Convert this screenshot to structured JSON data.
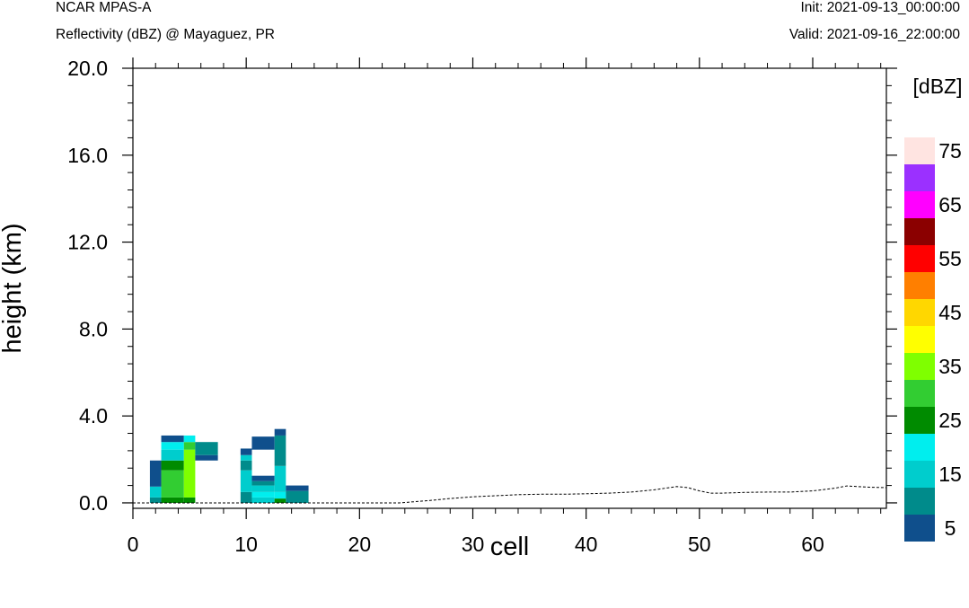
{
  "header": {
    "model": "NCAR MPAS-A",
    "field": "Reflectivity (dBZ) @ Mayaguez, PR",
    "init": "Init: 2021-09-13_00:00:00",
    "valid": "Valid: 2021-09-16_22:00:00"
  },
  "chart_data": {
    "type": "heatmap",
    "xlabel": "cell",
    "ylabel": "height (km)",
    "xlim": [
      0,
      66.5
    ],
    "ylim": [
      -0.25,
      20.0
    ],
    "xticks": [
      0,
      10,
      20,
      30,
      40,
      50,
      60
    ],
    "xtick_labels": [
      "0",
      "10",
      "20",
      "30",
      "40",
      "50",
      "60"
    ],
    "yticks": [
      0.0,
      4.0,
      8.0,
      12.0,
      16.0,
      20.0
    ],
    "ytick_labels": [
      "0.0",
      "4.0",
      "8.0",
      "12.0",
      "16.0",
      "20.0"
    ],
    "colorbar": {
      "unit_label": "[dBZ]",
      "tick_labels": [
        "5",
        "15",
        "25",
        "35",
        "45",
        "55",
        "65",
        "75"
      ],
      "levels": [
        5,
        10,
        15,
        20,
        25,
        30,
        35,
        40,
        45,
        50,
        55,
        60,
        65,
        70,
        75
      ],
      "colors": [
        "#0f4f8c",
        "#008b8b",
        "#00cdcd",
        "#00eeee",
        "#008b00",
        "#32cd32",
        "#7fff00",
        "#ffff00",
        "#ffd700",
        "#ff7f00",
        "#ff0000",
        "#8b0000",
        "#ff00ff",
        "#9b30ff",
        "#ffe4e1"
      ]
    },
    "cells": [
      {
        "x0": 1.5,
        "x1": 2.5,
        "y0": 0.0,
        "y1": 0.25,
        "dbz": 10
      },
      {
        "x0": 1.5,
        "x1": 2.5,
        "y0": 0.25,
        "y1": 0.75,
        "dbz": 15
      },
      {
        "x0": 1.5,
        "x1": 2.5,
        "y0": 0.75,
        "y1": 1.95,
        "dbz": 5
      },
      {
        "x0": 2.5,
        "x1": 4.5,
        "y0": 0.0,
        "y1": 0.25,
        "dbz": 25
      },
      {
        "x0": 2.5,
        "x1": 4.5,
        "y0": 0.25,
        "y1": 1.5,
        "dbz": 30
      },
      {
        "x0": 2.5,
        "x1": 4.5,
        "y0": 1.5,
        "y1": 1.95,
        "dbz": 25
      },
      {
        "x0": 2.5,
        "x1": 4.5,
        "y0": 1.95,
        "y1": 2.45,
        "dbz": 15
      },
      {
        "x0": 2.5,
        "x1": 4.5,
        "y0": 2.45,
        "y1": 2.8,
        "dbz": 20
      },
      {
        "x0": 2.5,
        "x1": 4.5,
        "y0": 2.8,
        "y1": 3.1,
        "dbz": 5
      },
      {
        "x0": 4.5,
        "x1": 5.5,
        "y0": 0.0,
        "y1": 0.25,
        "dbz": 25
      },
      {
        "x0": 4.5,
        "x1": 5.5,
        "y0": 0.25,
        "y1": 2.45,
        "dbz": 35
      },
      {
        "x0": 4.5,
        "x1": 5.5,
        "y0": 2.45,
        "y1": 2.8,
        "dbz": 30
      },
      {
        "x0": 4.5,
        "x1": 5.5,
        "y0": 2.8,
        "y1": 3.1,
        "dbz": 20
      },
      {
        "x0": 5.5,
        "x1": 7.5,
        "y0": 1.95,
        "y1": 2.2,
        "dbz": 5
      },
      {
        "x0": 5.5,
        "x1": 7.5,
        "y0": 2.2,
        "y1": 2.8,
        "dbz": 10
      },
      {
        "x0": 9.5,
        "x1": 10.5,
        "y0": 0.0,
        "y1": 0.5,
        "dbz": 10
      },
      {
        "x0": 9.5,
        "x1": 10.5,
        "y0": 0.5,
        "y1": 1.5,
        "dbz": 15
      },
      {
        "x0": 9.5,
        "x1": 10.5,
        "y0": 1.5,
        "y1": 1.95,
        "dbz": 10
      },
      {
        "x0": 9.5,
        "x1": 10.5,
        "y0": 1.95,
        "y1": 2.2,
        "dbz": 15
      },
      {
        "x0": 9.5,
        "x1": 10.5,
        "y0": 2.2,
        "y1": 2.5,
        "dbz": 5
      },
      {
        "x0": 10.5,
        "x1": 12.5,
        "y0": 0.0,
        "y1": 0.25,
        "dbz": 15
      },
      {
        "x0": 10.5,
        "x1": 12.5,
        "y0": 0.25,
        "y1": 0.5,
        "dbz": 20
      },
      {
        "x0": 10.5,
        "x1": 12.5,
        "y0": 0.5,
        "y1": 0.8,
        "dbz": 15
      },
      {
        "x0": 10.5,
        "x1": 12.5,
        "y0": 0.8,
        "y1": 1.0,
        "dbz": 10
      },
      {
        "x0": 10.5,
        "x1": 12.5,
        "y0": 1.0,
        "y1": 1.25,
        "dbz": 5
      },
      {
        "x0": 10.5,
        "x1": 12.5,
        "y0": 2.45,
        "y1": 3.05,
        "dbz": 5
      },
      {
        "x0": 12.5,
        "x1": 13.5,
        "y0": 0.0,
        "y1": 0.2,
        "dbz": 25
      },
      {
        "x0": 12.5,
        "x1": 13.5,
        "y0": 0.2,
        "y1": 0.5,
        "dbz": 20
      },
      {
        "x0": 12.5,
        "x1": 13.5,
        "y0": 0.5,
        "y1": 1.7,
        "dbz": 15
      },
      {
        "x0": 12.5,
        "x1": 13.5,
        "y0": 1.7,
        "y1": 3.1,
        "dbz": 10
      },
      {
        "x0": 12.5,
        "x1": 13.5,
        "y0": 3.1,
        "y1": 3.4,
        "dbz": 5
      },
      {
        "x0": 13.5,
        "x1": 15.5,
        "y0": 0.0,
        "y1": 0.55,
        "dbz": 10
      },
      {
        "x0": 13.5,
        "x1": 15.5,
        "y0": 0.55,
        "y1": 0.8,
        "dbz": 5
      }
    ],
    "terrain": {
      "x": [
        0,
        23.5,
        26,
        28,
        30,
        32,
        34,
        36,
        38,
        40,
        42,
        44,
        46,
        48,
        49,
        50,
        51,
        52,
        54,
        56,
        58,
        60,
        62,
        63,
        64,
        65,
        66.5
      ],
      "y": [
        0,
        0,
        0.1,
        0.2,
        0.28,
        0.33,
        0.38,
        0.4,
        0.4,
        0.42,
        0.45,
        0.5,
        0.6,
        0.75,
        0.7,
        0.55,
        0.45,
        0.45,
        0.48,
        0.5,
        0.5,
        0.55,
        0.68,
        0.78,
        0.75,
        0.72,
        0.7
      ]
    }
  }
}
